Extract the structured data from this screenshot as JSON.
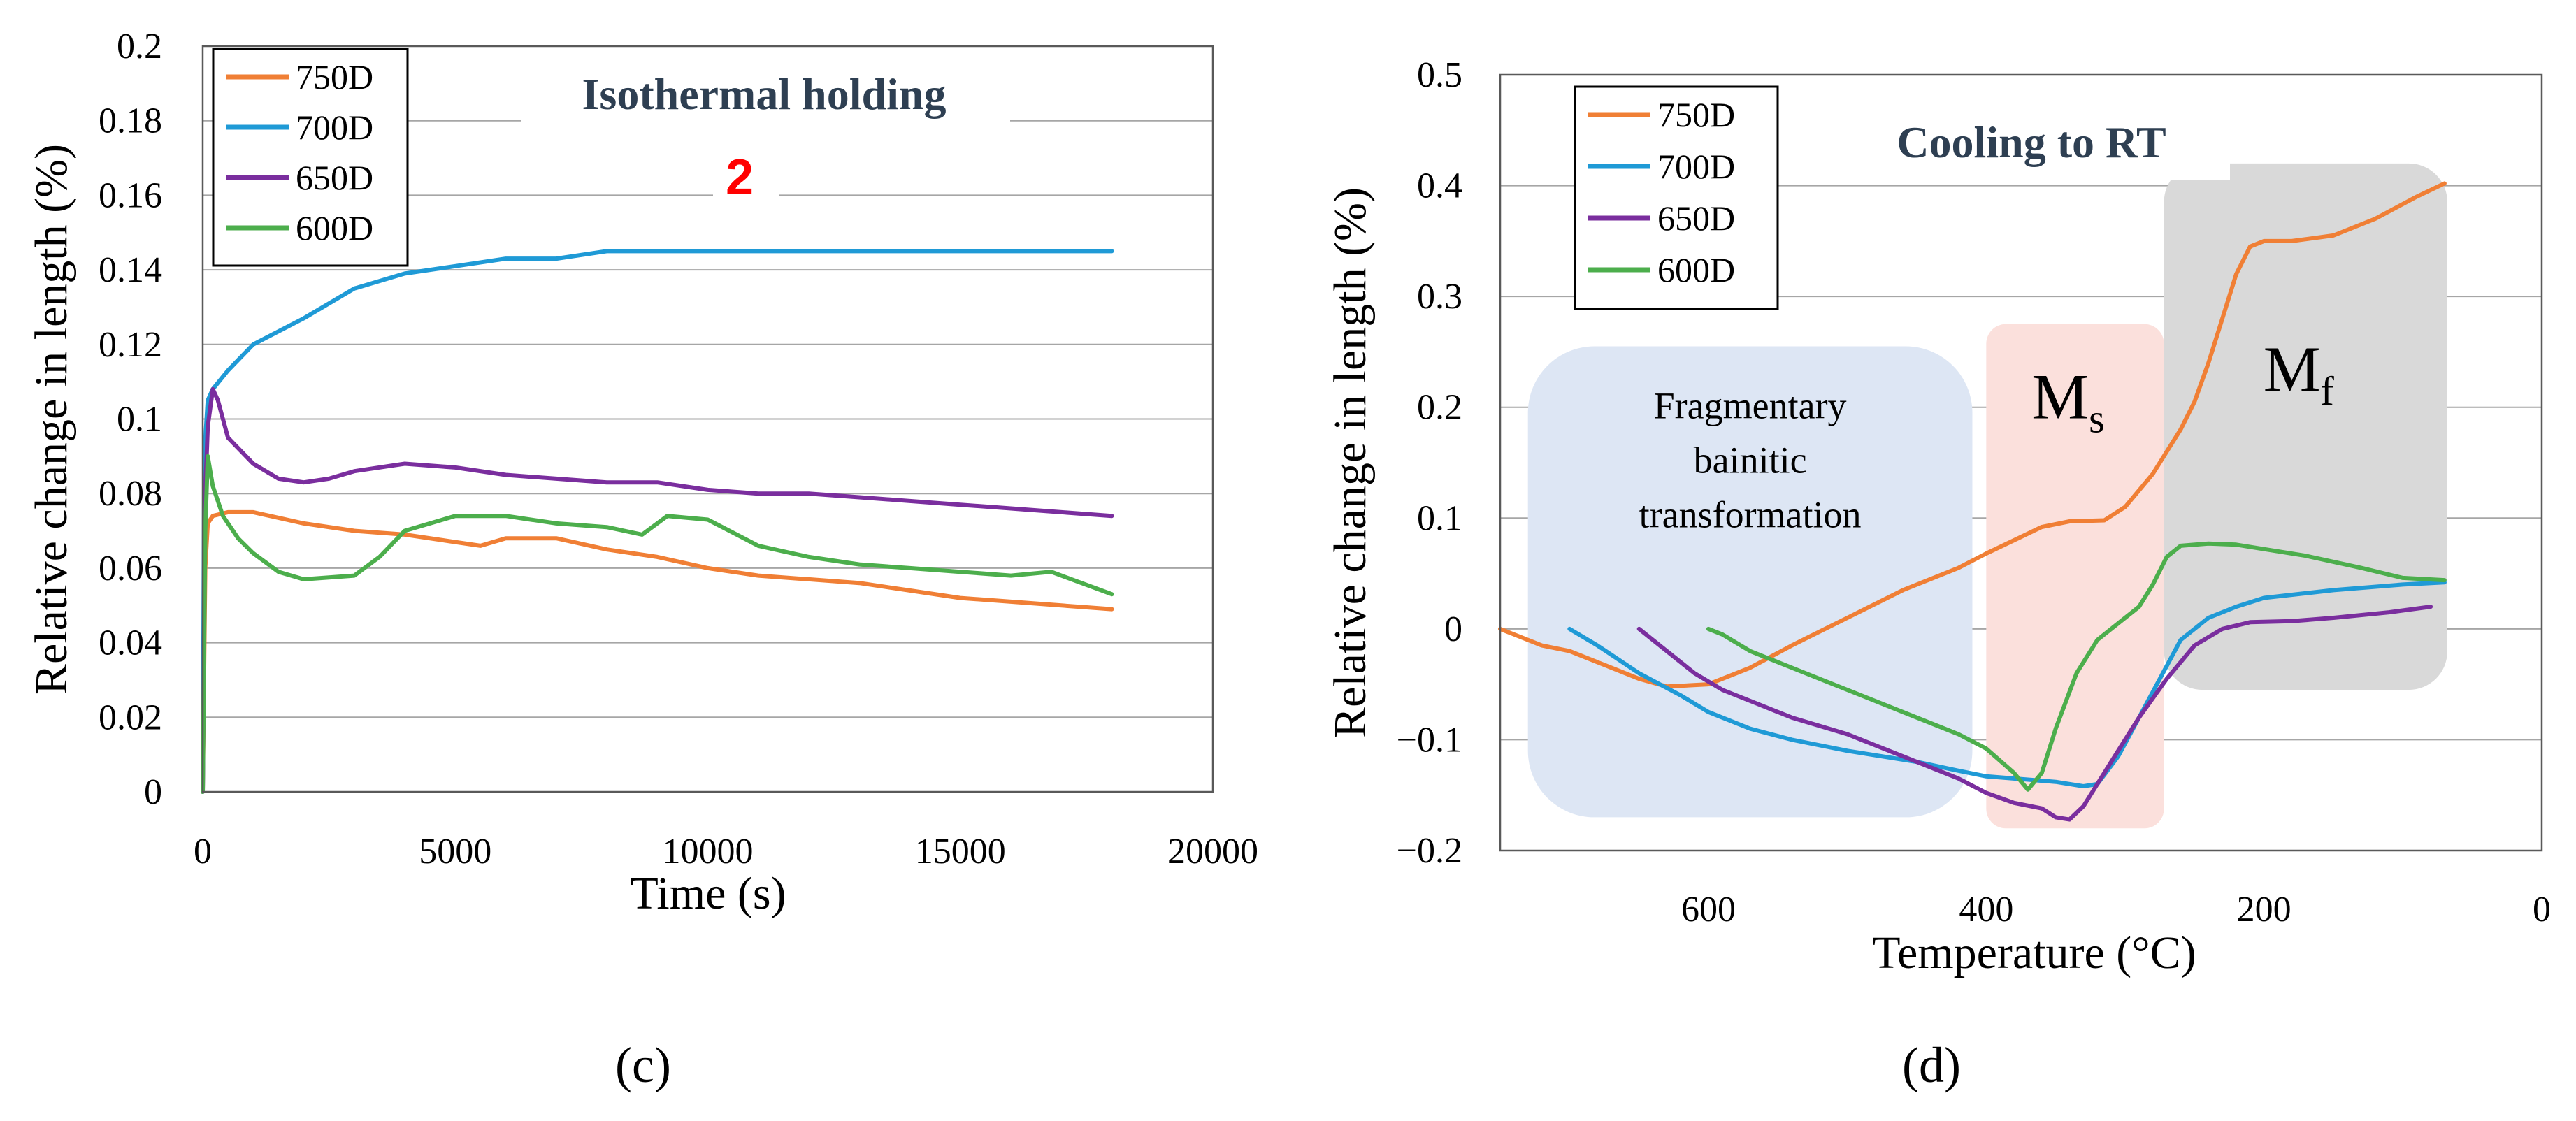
{
  "chart_data": [
    {
      "type": "line",
      "panel_label": "(c)",
      "heading": "Isothermal holding",
      "marker": "2",
      "xlabel": "Time (s)",
      "ylabel": "Relative change in length (%)",
      "xlim": [
        0,
        20000
      ],
      "ylim": [
        0,
        0.2
      ],
      "xticks": [
        "0",
        "5000",
        "10000",
        "15000",
        "20000"
      ],
      "yticks": [
        "0",
        "0.02",
        "0.04",
        "0.06",
        "0.08",
        "0.1",
        "0.12",
        "0.14",
        "0.16",
        "0.18",
        "0.2"
      ],
      "grid": "horizontal",
      "legend_position": "top-left",
      "series": [
        {
          "name": "750D",
          "color": "#f07f35",
          "points": [
            [
              0,
              0
            ],
            [
              50,
              0.06
            ],
            [
              100,
              0.072
            ],
            [
              200,
              0.074
            ],
            [
              500,
              0.075
            ],
            [
              1000,
              0.075
            ],
            [
              2000,
              0.072
            ],
            [
              3000,
              0.07
            ],
            [
              4000,
              0.069
            ],
            [
              5000,
              0.067
            ],
            [
              5500,
              0.066
            ],
            [
              6000,
              0.068
            ],
            [
              7000,
              0.068
            ],
            [
              8000,
              0.065
            ],
            [
              9000,
              0.063
            ],
            [
              10000,
              0.06
            ],
            [
              11000,
              0.058
            ],
            [
              12000,
              0.057
            ],
            [
              13000,
              0.056
            ],
            [
              14000,
              0.054
            ],
            [
              15000,
              0.052
            ],
            [
              16000,
              0.051
            ],
            [
              17000,
              0.05
            ],
            [
              18000,
              0.049
            ]
          ]
        },
        {
          "name": "700D",
          "color": "#1f9ad6",
          "points": [
            [
              0,
              0
            ],
            [
              30,
              0.09
            ],
            [
              100,
              0.105
            ],
            [
              200,
              0.108
            ],
            [
              500,
              0.113
            ],
            [
              1000,
              0.12
            ],
            [
              2000,
              0.127
            ],
            [
              3000,
              0.135
            ],
            [
              4000,
              0.139
            ],
            [
              5000,
              0.141
            ],
            [
              6000,
              0.143
            ],
            [
              7000,
              0.143
            ],
            [
              8000,
              0.145
            ],
            [
              9000,
              0.145
            ],
            [
              10000,
              0.145
            ],
            [
              12000,
              0.145
            ],
            [
              14000,
              0.145
            ],
            [
              16000,
              0.145
            ],
            [
              18000,
              0.145
            ]
          ]
        },
        {
          "name": "650D",
          "color": "#7a2e9e",
          "points": [
            [
              0,
              0
            ],
            [
              50,
              0.08
            ],
            [
              100,
              0.098
            ],
            [
              200,
              0.108
            ],
            [
              300,
              0.105
            ],
            [
              500,
              0.095
            ],
            [
              1000,
              0.088
            ],
            [
              1500,
              0.084
            ],
            [
              2000,
              0.083
            ],
            [
              2500,
              0.084
            ],
            [
              3000,
              0.086
            ],
            [
              4000,
              0.088
            ],
            [
              5000,
              0.087
            ],
            [
              6000,
              0.085
            ],
            [
              7000,
              0.084
            ],
            [
              8000,
              0.083
            ],
            [
              9000,
              0.083
            ],
            [
              10000,
              0.081
            ],
            [
              11000,
              0.08
            ],
            [
              12000,
              0.08
            ],
            [
              13000,
              0.079
            ],
            [
              14000,
              0.078
            ],
            [
              15000,
              0.077
            ],
            [
              16000,
              0.076
            ],
            [
              17000,
              0.075
            ],
            [
              18000,
              0.074
            ]
          ]
        },
        {
          "name": "600D",
          "color": "#4cae4c",
          "points": [
            [
              0,
              0
            ],
            [
              50,
              0.07
            ],
            [
              100,
              0.09
            ],
            [
              200,
              0.082
            ],
            [
              400,
              0.074
            ],
            [
              700,
              0.068
            ],
            [
              1000,
              0.064
            ],
            [
              1500,
              0.059
            ],
            [
              2000,
              0.057
            ],
            [
              3000,
              0.058
            ],
            [
              3500,
              0.063
            ],
            [
              4000,
              0.07
            ],
            [
              5000,
              0.074
            ],
            [
              6000,
              0.074
            ],
            [
              7000,
              0.072
            ],
            [
              8000,
              0.071
            ],
            [
              8700,
              0.069
            ],
            [
              9200,
              0.074
            ],
            [
              10000,
              0.073
            ],
            [
              11000,
              0.066
            ],
            [
              12000,
              0.063
            ],
            [
              13000,
              0.061
            ],
            [
              14000,
              0.06
            ],
            [
              15000,
              0.059
            ],
            [
              16000,
              0.058
            ],
            [
              16800,
              0.059
            ],
            [
              17000,
              0.058
            ],
            [
              18000,
              0.053
            ]
          ]
        }
      ]
    },
    {
      "type": "line",
      "panel_label": "(d)",
      "heading": "Cooling to RT",
      "xlabel": "Temperature (°C)",
      "ylabel": "Relative change in length (%)",
      "xlim": [
        750,
        0
      ],
      "ylim": [
        -0.2,
        0.5
      ],
      "xticks": [
        "600",
        "400",
        "200",
        "0"
      ],
      "yticks": [
        "−0.2",
        "−0.1",
        "0",
        "0.1",
        "0.2",
        "0.3",
        "0.4",
        "0.5"
      ],
      "grid": "horizontal",
      "legend_position": "top-left",
      "regions": [
        {
          "label_lines": [
            "Fragmentary",
            "bainitic",
            "transformation"
          ],
          "x_range": [
            730,
            410
          ],
          "y_range": [
            -0.17,
            0.255
          ],
          "color": "#dde6f4"
        },
        {
          "label": "M",
          "subscript": "s",
          "x_range": [
            400,
            272
          ],
          "y_range": [
            -0.18,
            0.275
          ],
          "color": "#fbe0dc"
        },
        {
          "label": "M",
          "subscript": "f",
          "x_range": [
            272,
            68
          ],
          "y_range": [
            -0.055,
            0.42
          ],
          "color": "#d9d9d9"
        }
      ],
      "series": [
        {
          "name": "750D",
          "color": "#f07f35",
          "points": [
            [
              750,
              0
            ],
            [
              720,
              -0.015
            ],
            [
              700,
              -0.02
            ],
            [
              680,
              -0.03
            ],
            [
              650,
              -0.045
            ],
            [
              630,
              -0.052
            ],
            [
              600,
              -0.05
            ],
            [
              570,
              -0.035
            ],
            [
              540,
              -0.015
            ],
            [
              500,
              0.01
            ],
            [
              460,
              0.035
            ],
            [
              420,
              0.055
            ],
            [
              400,
              0.068
            ],
            [
              380,
              0.08
            ],
            [
              360,
              0.092
            ],
            [
              340,
              0.097
            ],
            [
              315,
              0.098
            ],
            [
              300,
              0.11
            ],
            [
              280,
              0.14
            ],
            [
              260,
              0.18
            ],
            [
              250,
              0.205
            ],
            [
              240,
              0.24
            ],
            [
              230,
              0.28
            ],
            [
              220,
              0.32
            ],
            [
              210,
              0.345
            ],
            [
              200,
              0.35
            ],
            [
              180,
              0.35
            ],
            [
              150,
              0.355
            ],
            [
              120,
              0.37
            ],
            [
              90,
              0.39
            ],
            [
              70,
              0.402
            ]
          ]
        },
        {
          "name": "700D",
          "color": "#1f9ad6",
          "points": [
            [
              700,
              0
            ],
            [
              680,
              -0.015
            ],
            [
              650,
              -0.04
            ],
            [
              620,
              -0.06
            ],
            [
              600,
              -0.075
            ],
            [
              570,
              -0.09
            ],
            [
              540,
              -0.1
            ],
            [
              500,
              -0.11
            ],
            [
              450,
              -0.12
            ],
            [
              420,
              -0.128
            ],
            [
              400,
              -0.133
            ],
            [
              370,
              -0.136
            ],
            [
              350,
              -0.138
            ],
            [
              330,
              -0.142
            ],
            [
              320,
              -0.14
            ],
            [
              305,
              -0.115
            ],
            [
              290,
              -0.08
            ],
            [
              275,
              -0.045
            ],
            [
              260,
              -0.01
            ],
            [
              240,
              0.01
            ],
            [
              220,
              0.02
            ],
            [
              200,
              0.028
            ],
            [
              150,
              0.035
            ],
            [
              100,
              0.04
            ],
            [
              70,
              0.042
            ]
          ]
        },
        {
          "name": "650D",
          "color": "#7a2e9e",
          "points": [
            [
              650,
              0
            ],
            [
              630,
              -0.02
            ],
            [
              610,
              -0.04
            ],
            [
              590,
              -0.055
            ],
            [
              570,
              -0.065
            ],
            [
              540,
              -0.08
            ],
            [
              500,
              -0.095
            ],
            [
              460,
              -0.115
            ],
            [
              420,
              -0.135
            ],
            [
              400,
              -0.148
            ],
            [
              380,
              -0.157
            ],
            [
              360,
              -0.162
            ],
            [
              350,
              -0.17
            ],
            [
              340,
              -0.172
            ],
            [
              330,
              -0.16
            ],
            [
              310,
              -0.12
            ],
            [
              290,
              -0.08
            ],
            [
              270,
              -0.045
            ],
            [
              250,
              -0.015
            ],
            [
              230,
              0
            ],
            [
              210,
              0.006
            ],
            [
              180,
              0.007
            ],
            [
              150,
              0.01
            ],
            [
              110,
              0.015
            ],
            [
              80,
              0.02
            ]
          ]
        },
        {
          "name": "600D",
          "color": "#4cae4c",
          "points": [
            [
              600,
              0
            ],
            [
              590,
              -0.005
            ],
            [
              570,
              -0.02
            ],
            [
              540,
              -0.035
            ],
            [
              500,
              -0.055
            ],
            [
              460,
              -0.075
            ],
            [
              420,
              -0.095
            ],
            [
              400,
              -0.108
            ],
            [
              380,
              -0.13
            ],
            [
              370,
              -0.145
            ],
            [
              360,
              -0.13
            ],
            [
              350,
              -0.09
            ],
            [
              335,
              -0.04
            ],
            [
              320,
              -0.01
            ],
            [
              300,
              0.01
            ],
            [
              290,
              0.02
            ],
            [
              280,
              0.04
            ],
            [
              270,
              0.065
            ],
            [
              260,
              0.075
            ],
            [
              240,
              0.077
            ],
            [
              220,
              0.076
            ],
            [
              200,
              0.072
            ],
            [
              170,
              0.066
            ],
            [
              130,
              0.055
            ],
            [
              100,
              0.046
            ],
            [
              70,
              0.044
            ]
          ]
        }
      ]
    }
  ]
}
